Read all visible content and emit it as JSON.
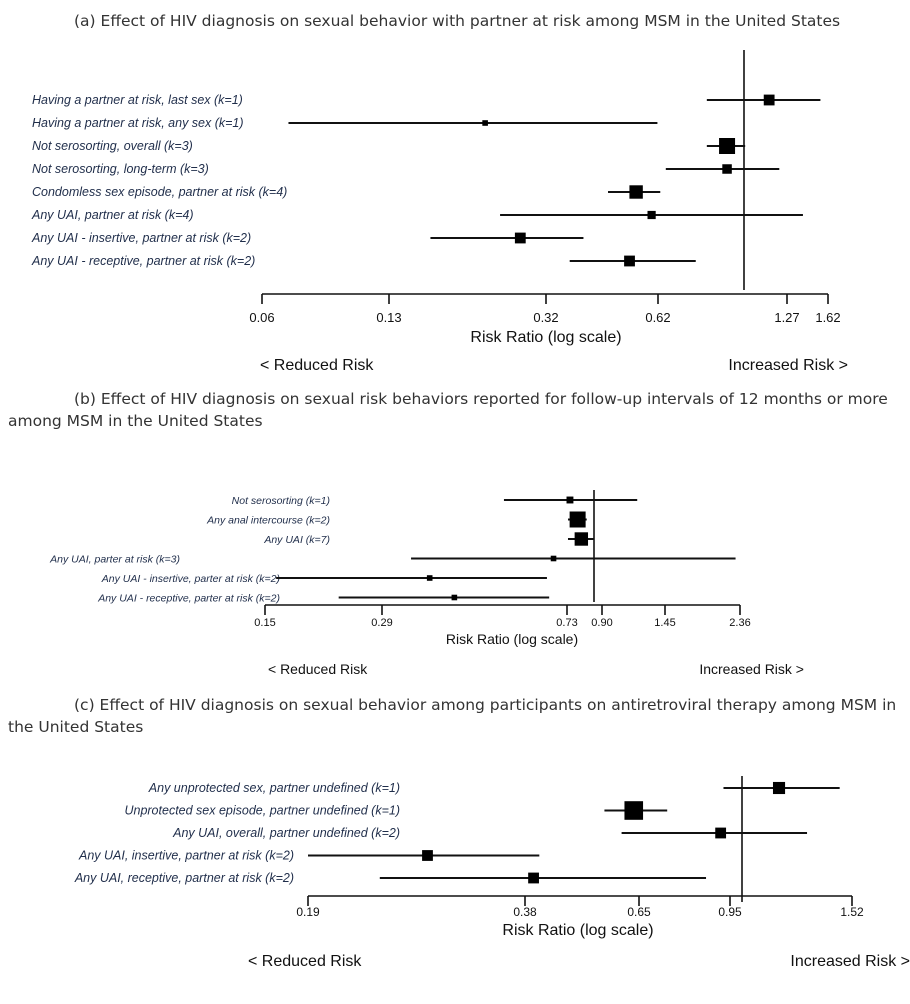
{
  "chart_data": [
    {
      "type": "forest",
      "title": "(a) Effect of HIV diagnosis on sexual behavior with partner at risk among MSM in the United States",
      "xlabel": "Risk Ratio (log scale)",
      "xscale": "log",
      "xlim": [
        0.06,
        1.62
      ],
      "xticks": [
        0.06,
        0.13,
        0.32,
        0.62,
        1.27,
        1.62
      ],
      "reference_line": 1.0,
      "left_direction": "< Reduced Risk",
      "right_direction": "Increased Risk >",
      "rows": [
        {
          "label": "Having a partner at risk, last sex (k=1)",
          "rr": 1.15,
          "lo": 0.8,
          "hi": 1.55,
          "weight": 3
        },
        {
          "label": "Having a partner at risk, any sex (k=1)",
          "rr": 0.22,
          "lo": 0.07,
          "hi": 0.6,
          "weight": 1
        },
        {
          "label": "Not serosorting, overall (k=3)",
          "rr": 0.9,
          "lo": 0.8,
          "hi": 1.0,
          "weight": 5
        },
        {
          "label": "Not serosorting, long-term (k=3)",
          "rr": 0.9,
          "lo": 0.63,
          "hi": 1.22,
          "weight": 2.5
        },
        {
          "label": "Condomless sex episode, partner at risk (k=4)",
          "rr": 0.53,
          "lo": 0.45,
          "hi": 0.61,
          "weight": 4
        },
        {
          "label": "Any UAI, partner at risk (k=4)",
          "rr": 0.58,
          "lo": 0.24,
          "hi": 1.4,
          "weight": 2
        },
        {
          "label": "Any UAI - insertive, partner at risk (k=2)",
          "rr": 0.27,
          "lo": 0.16,
          "hi": 0.39,
          "weight": 3
        },
        {
          "label": "Any UAI - receptive, partner at risk (k=2)",
          "rr": 0.51,
          "lo": 0.36,
          "hi": 0.75,
          "weight": 3
        }
      ]
    },
    {
      "type": "forest",
      "title": "(b) Effect of HIV diagnosis on sexual risk behaviors reported for follow-up intervals of 12 months or more among MSM in the United States",
      "xlabel": "Risk Ratio (log scale)",
      "xscale": "log",
      "xlim": [
        0.15,
        2.36
      ],
      "xticks": [
        0.15,
        0.29,
        0.73,
        0.9,
        1.45,
        2.36
      ],
      "reference_line": 1.0,
      "left_direction": "< Reduced Risk",
      "right_direction": "Increased Risk >",
      "rows": [
        {
          "label": "Not serosorting (k=1)",
          "rr": 0.88,
          "lo": 0.6,
          "hi": 1.3,
          "weight": 1.5
        },
        {
          "label": "Any anal intercourse (k=2)",
          "rr": 0.92,
          "lo": 0.87,
          "hi": 0.97,
          "weight": 5
        },
        {
          "label": "Any UAI (k=7)",
          "rr": 0.94,
          "lo": 0.87,
          "hi": 1.01,
          "weight": 4
        },
        {
          "label": "Any UAI, parter at risk (k=3)",
          "rr": 0.8,
          "lo": 0.35,
          "hi": 2.3,
          "weight": 1
        },
        {
          "label": "Any UAI - insertive, parter at risk (k=2)",
          "rr": 0.39,
          "lo": 0.16,
          "hi": 0.77,
          "weight": 1
        },
        {
          "label": "Any UAI - receptive, parter at risk (k=2)",
          "rr": 0.45,
          "lo": 0.23,
          "hi": 0.78,
          "weight": 1
        }
      ]
    },
    {
      "type": "forest",
      "title": "(c) Effect of HIV diagnosis on sexual behavior among participants on antiretroviral therapy among MSM in the United States",
      "xlabel": "Risk Ratio (log scale)",
      "xscale": "log",
      "xlim": [
        0.19,
        1.52
      ],
      "xticks": [
        0.19,
        0.38,
        0.65,
        0.95,
        1.52
      ],
      "reference_line": 1.0,
      "left_direction": "< Reduced Risk",
      "right_direction": "Increased Risk >",
      "rows": [
        {
          "label": "Any unprotected sex, partner undefined (k=1)",
          "rr": 1.15,
          "lo": 0.93,
          "hi": 1.45,
          "weight": 3.5
        },
        {
          "label": "Unprotected sex episode, partner undefined (k=1)",
          "rr": 0.66,
          "lo": 0.59,
          "hi": 0.75,
          "weight": 6
        },
        {
          "label": "Any UAI, overall, partner undefined (k=2)",
          "rr": 0.92,
          "lo": 0.63,
          "hi": 1.28,
          "weight": 3
        },
        {
          "label": "Any UAI, insertive, partner at risk (k=2)",
          "rr": 0.3,
          "lo": 0.19,
          "hi": 0.46,
          "weight": 3
        },
        {
          "label": "Any UAI, receptive, partner at risk (k=2)",
          "rr": 0.45,
          "lo": 0.25,
          "hi": 0.87,
          "weight": 3
        }
      ]
    }
  ]
}
